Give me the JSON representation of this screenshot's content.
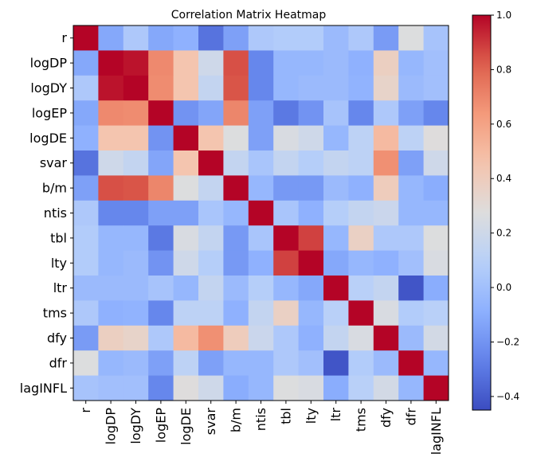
{
  "chart_data": {
    "type": "heatmap",
    "title": "Correlation Matrix Heatmap",
    "labels": [
      "r",
      "logDP",
      "logDY",
      "logEP",
      "logDE",
      "svar",
      "b/m",
      "ntis",
      "tbl",
      "lty",
      "ltr",
      "tms",
      "dfy",
      "dfr",
      "lagINFL"
    ],
    "colormap": "coolwarm",
    "vmin": -0.45,
    "vmax": 1.0,
    "colorbar_ticks": [
      -0.4,
      -0.2,
      0.0,
      0.2,
      0.4,
      0.6,
      0.8,
      1.0
    ],
    "colorbar_tick_labels": [
      "−0.4",
      "−0.2",
      "0.0",
      "0.2",
      "0.4",
      "0.6",
      "0.8",
      "1.0"
    ],
    "matrix": [
      [
        1.0,
        -0.12,
        0.05,
        -0.12,
        -0.08,
        -0.32,
        -0.15,
        0.05,
        0.07,
        0.07,
        -0.03,
        0.05,
        -0.17,
        0.27,
        0.02
      ],
      [
        -0.12,
        1.0,
        0.97,
        0.69,
        0.45,
        0.2,
        0.85,
        -0.25,
        -0.05,
        -0.05,
        -0.03,
        -0.08,
        0.38,
        -0.05,
        0.0
      ],
      [
        0.05,
        0.97,
        1.0,
        0.68,
        0.45,
        0.15,
        0.84,
        -0.25,
        -0.05,
        -0.03,
        -0.03,
        -0.07,
        0.35,
        -0.03,
        0.0
      ],
      [
        -0.12,
        0.69,
        0.68,
        1.0,
        -0.2,
        -0.13,
        0.7,
        -0.15,
        -0.3,
        -0.2,
        0.02,
        -0.25,
        0.05,
        -0.15,
        -0.25
      ],
      [
        -0.08,
        0.45,
        0.45,
        -0.2,
        1.0,
        0.45,
        0.27,
        -0.15,
        0.25,
        0.2,
        -0.05,
        0.12,
        0.5,
        0.12,
        0.28
      ],
      [
        -0.32,
        0.2,
        0.15,
        -0.13,
        0.45,
        1.0,
        0.15,
        0.03,
        0.15,
        0.08,
        0.15,
        0.12,
        0.67,
        -0.15,
        0.2
      ],
      [
        -0.15,
        0.85,
        0.84,
        0.7,
        0.27,
        0.15,
        1.0,
        -0.05,
        -0.18,
        -0.18,
        -0.03,
        -0.08,
        0.4,
        -0.05,
        -0.1
      ],
      [
        0.05,
        -0.25,
        -0.25,
        -0.15,
        -0.15,
        0.03,
        -0.05,
        1.0,
        0.03,
        -0.08,
        0.08,
        0.15,
        0.18,
        -0.05,
        -0.05
      ],
      [
        0.07,
        -0.05,
        -0.05,
        -0.3,
        0.25,
        0.15,
        -0.18,
        0.03,
        1.0,
        0.88,
        -0.05,
        0.37,
        0.05,
        0.05,
        0.27
      ],
      [
        0.07,
        -0.05,
        -0.03,
        -0.2,
        0.2,
        0.08,
        -0.18,
        -0.08,
        0.88,
        1.0,
        -0.12,
        -0.05,
        -0.08,
        0.0,
        0.25
      ],
      [
        -0.03,
        -0.03,
        -0.03,
        0.02,
        -0.05,
        0.15,
        -0.03,
        0.08,
        -0.05,
        -0.12,
        1.0,
        0.1,
        0.15,
        -0.42,
        -0.1
      ],
      [
        0.05,
        -0.08,
        -0.07,
        -0.25,
        0.12,
        0.12,
        -0.08,
        0.15,
        0.37,
        -0.05,
        0.1,
        1.0,
        0.25,
        0.07,
        0.1
      ],
      [
        -0.17,
        0.38,
        0.35,
        0.05,
        0.5,
        0.67,
        0.4,
        0.18,
        0.05,
        -0.08,
        0.15,
        0.25,
        1.0,
        -0.03,
        0.22
      ],
      [
        0.27,
        -0.05,
        -0.03,
        -0.15,
        0.12,
        -0.15,
        -0.05,
        -0.05,
        0.05,
        0.0,
        -0.42,
        0.07,
        -0.03,
        1.0,
        -0.05
      ],
      [
        0.02,
        0.0,
        0.0,
        -0.25,
        0.28,
        0.2,
        -0.1,
        -0.05,
        0.27,
        0.25,
        -0.1,
        0.1,
        0.22,
        -0.05,
        1.0
      ]
    ]
  }
}
